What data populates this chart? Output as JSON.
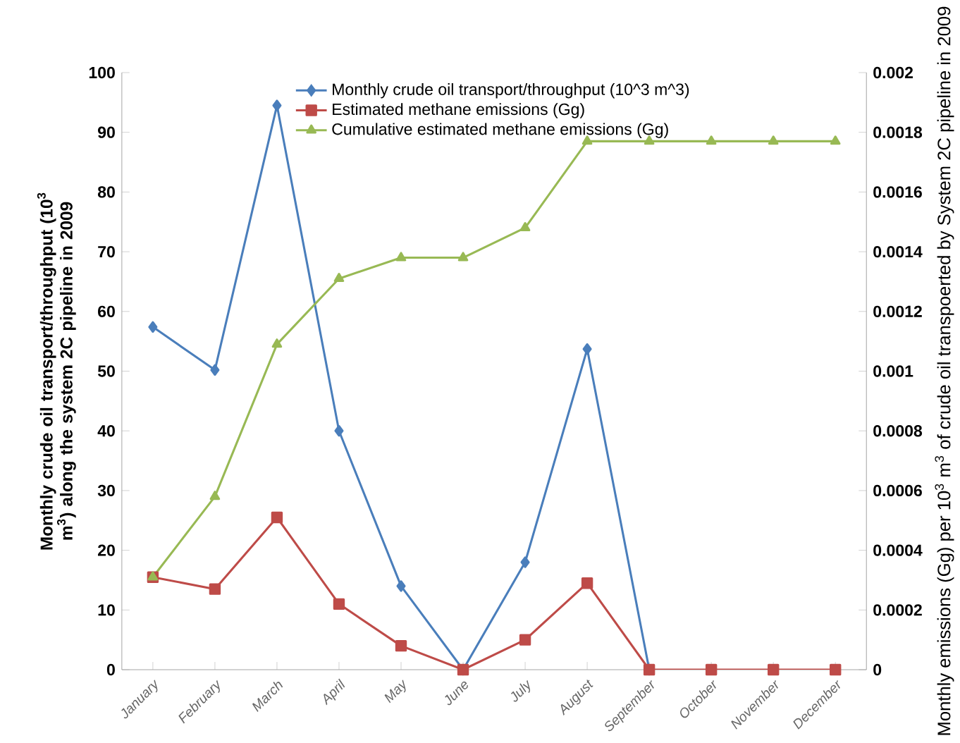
{
  "chart_data": {
    "type": "line",
    "categories": [
      "January",
      "February",
      "March",
      "April",
      "May",
      "June",
      "July",
      "August",
      "September",
      "October",
      "November",
      "December"
    ],
    "series": [
      {
        "name": "Monthly crude oil transport/throughput (10^3 m^3)",
        "color": "#4a7ebb",
        "marker": "diamond",
        "values": [
          57.4,
          50.2,
          94.5,
          40,
          14,
          0,
          18,
          53.7,
          0,
          null,
          null,
          null
        ]
      },
      {
        "name": "Estimated methane emissions (Gg)",
        "color": "#be4b48",
        "marker": "square",
        "axis": "y2",
        "values": [
          0.00031,
          0.00027,
          0.00051,
          0.00022,
          8e-05,
          0,
          0.0001,
          0.00029,
          0,
          0,
          0,
          0
        ]
      },
      {
        "name": "Cumulative estimated methane emissions (Gg)",
        "color": "#98b954",
        "marker": "triangle",
        "axis": "y2",
        "values": [
          0.00031,
          0.00058,
          0.00109,
          0.00131,
          0.00138,
          0.00138,
          0.00148,
          0.00177,
          0.00177,
          0.00177,
          0.00177,
          0.00177
        ]
      }
    ],
    "ylabel": "Monthly crude oil transport/throughput  (10$^{3}$ m$^{3}$) along the system 2C pipeline in 2009",
    "y2label": "Monthly emissions (Gg) per 10$^{3}$ m$^{3}$  of crude oil transpoerted by System 2C pipeline in 2009",
    "ylim": [
      0,
      100
    ],
    "yticks": [
      0,
      10,
      20,
      30,
      40,
      50,
      60,
      70,
      80,
      90,
      100
    ],
    "y2lim": [
      0,
      0.002
    ],
    "y2ticks": [
      0,
      0.0002,
      0.0004,
      0.0006,
      0.0008,
      0.001,
      0.0012,
      0.0014,
      0.0016,
      0.0018,
      0.002
    ],
    "legend": "top",
    "grid": false
  }
}
